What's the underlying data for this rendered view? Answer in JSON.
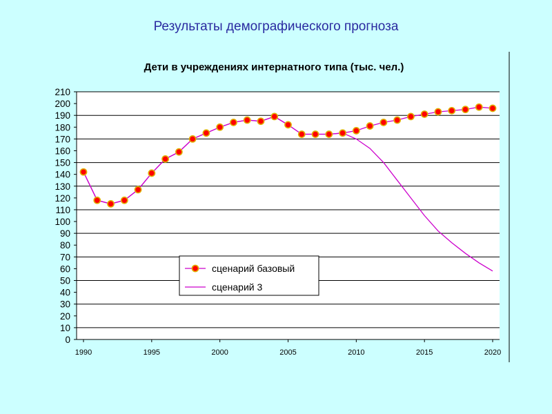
{
  "slide": {
    "title": "Результаты демографического прогноза"
  },
  "chart_data": {
    "type": "line",
    "title": "Дети в учреждениях интернатного типа (тыс. чел.)",
    "xlabel": "",
    "ylabel": "",
    "xlim": [
      1990,
      2020
    ],
    "ylim": [
      0,
      210
    ],
    "x_ticks": [
      1990,
      1995,
      2000,
      2005,
      2010,
      2015,
      2020
    ],
    "y_ticks": [
      0,
      10,
      20,
      30,
      40,
      50,
      60,
      70,
      80,
      90,
      100,
      110,
      120,
      130,
      140,
      150,
      160,
      170,
      180,
      190,
      200,
      210
    ],
    "grid": "horizontal",
    "legend": "center-left",
    "series": [
      {
        "name": "сценарий базовый",
        "color": "#ff0000",
        "line_color": "#cc00cc",
        "marker": "circle",
        "x": [
          1990,
          1991,
          1992,
          1993,
          1994,
          1995,
          1996,
          1997,
          1998,
          1999,
          2000,
          2001,
          2002,
          2003,
          2004,
          2005,
          2006,
          2007,
          2008,
          2009,
          2010,
          2011,
          2012,
          2013,
          2014,
          2015,
          2016,
          2017,
          2018,
          2019,
          2020
        ],
        "values": [
          142,
          118,
          115,
          118,
          127,
          141,
          153,
          159,
          170,
          175,
          180,
          184,
          186,
          185,
          189,
          182,
          174,
          174,
          174,
          175,
          177,
          181,
          184,
          186,
          189,
          191,
          193,
          194,
          195,
          197,
          196
        ]
      },
      {
        "name": "сценарий 3",
        "color": "#cc00cc",
        "marker": "none",
        "x": [
          1990,
          1991,
          1992,
          1993,
          1994,
          1995,
          1996,
          1997,
          1998,
          1999,
          2000,
          2001,
          2002,
          2003,
          2004,
          2005,
          2006,
          2007,
          2008,
          2009,
          2010,
          2011,
          2012,
          2013,
          2014,
          2015,
          2016,
          2017,
          2018,
          2019,
          2020
        ],
        "values": [
          142,
          118,
          115,
          118,
          127,
          141,
          153,
          159,
          170,
          175,
          180,
          184,
          186,
          185,
          189,
          182,
          174,
          174,
          174,
          175,
          170,
          162,
          150,
          135,
          120,
          105,
          92,
          82,
          73,
          65,
          58
        ]
      }
    ]
  }
}
